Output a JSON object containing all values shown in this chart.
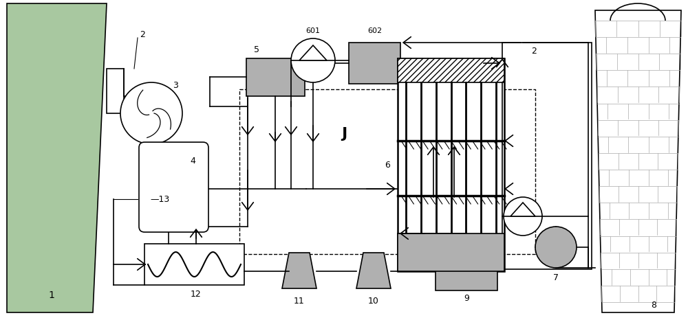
{
  "bg_color": "#ffffff",
  "fig_width": 10.0,
  "fig_height": 4.66,
  "dpi": 100,
  "green_fill": "#a8c8a0",
  "gray_fill": "#b0b0b0",
  "light_gray": "#c8c8c8",
  "dark_gray": "#909090"
}
